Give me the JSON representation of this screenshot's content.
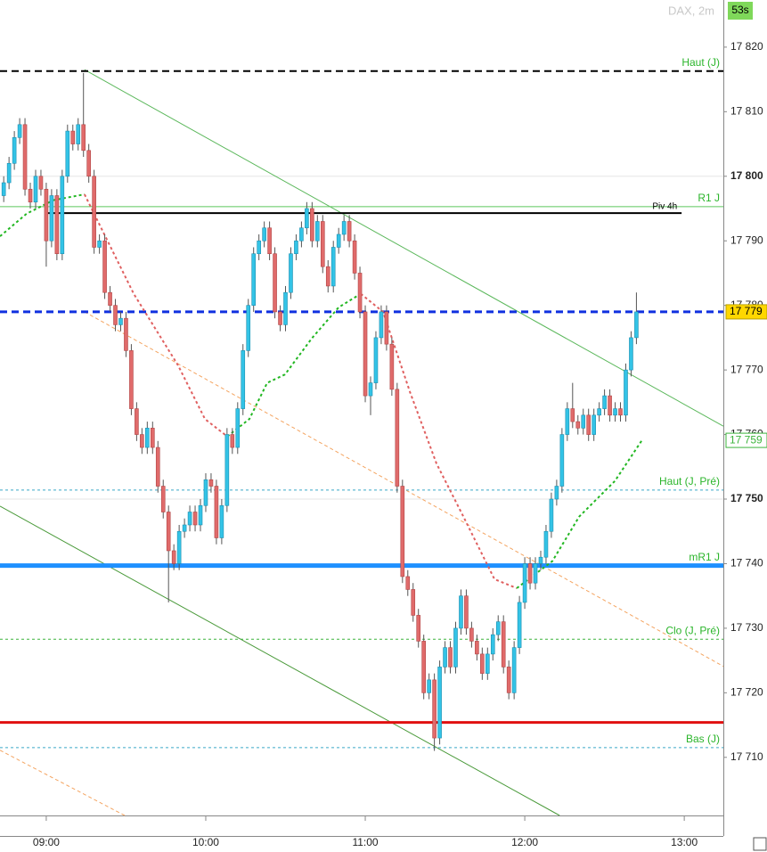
{
  "chart_data": {
    "type": "candlestick",
    "title": "DAX, 2m",
    "timer": "53s",
    "xlim": [
      522.6,
      794.7
    ],
    "ylim": [
      17701,
      17827.3
    ],
    "xticks": [
      {
        "value": 540,
        "label": "09:00"
      },
      {
        "value": 600,
        "label": "10:00"
      },
      {
        "value": 660,
        "label": "11:00"
      },
      {
        "value": 720,
        "label": "12:00"
      },
      {
        "value": 780,
        "label": "13:00"
      }
    ],
    "yticks": [
      {
        "value": 17710,
        "label": "17 710"
      },
      {
        "value": 17720,
        "label": "17 720"
      },
      {
        "value": 17730,
        "label": "17 730"
      },
      {
        "value": 17740,
        "label": "17 740"
      },
      {
        "value": 17750,
        "label": "17 750",
        "bold": true
      },
      {
        "value": 17760,
        "label": "17 760"
      },
      {
        "value": 17770,
        "label": "17 770"
      },
      {
        "value": 17780,
        "label": "17 780"
      },
      {
        "value": 17790,
        "label": "17 790"
      },
      {
        "value": 17800,
        "label": "17 800",
        "bold": true
      },
      {
        "value": 17810,
        "label": "17 810"
      },
      {
        "value": 17820,
        "label": "17 820"
      }
    ],
    "up_color": "#33c3e6",
    "down_color": "#e06b6b",
    "x": [
      524,
      526,
      528,
      530,
      532,
      534,
      536,
      538,
      540,
      542,
      544,
      546,
      548,
      550,
      552,
      554,
      556,
      558,
      560,
      562,
      564,
      566,
      568,
      570,
      572,
      574,
      576,
      578,
      580,
      582,
      584,
      586,
      588,
      590,
      592,
      594,
      596,
      598,
      600,
      602,
      604,
      606,
      608,
      610,
      612,
      614,
      616,
      618,
      620,
      622,
      624,
      626,
      628,
      630,
      632,
      634,
      636,
      638,
      640,
      642,
      644,
      646,
      648,
      650,
      652,
      654,
      656,
      658,
      660,
      662,
      664,
      666,
      668,
      670,
      672,
      674,
      676,
      678,
      680,
      682,
      684,
      686,
      688,
      690,
      692,
      694,
      696,
      698,
      700,
      702,
      704,
      706,
      708,
      710,
      712,
      714,
      716,
      718,
      720,
      722,
      724,
      726,
      728,
      730,
      732,
      734,
      736,
      738,
      740,
      742,
      744,
      746,
      748,
      750,
      752,
      754,
      756,
      758,
      760,
      762
    ],
    "open": [
      17797,
      17799,
      17802,
      17806,
      17808,
      17798,
      17796,
      17800,
      17798,
      17790,
      17797,
      17788,
      17800,
      17807,
      17805,
      17808,
      17804,
      17800,
      17789,
      17790,
      17782,
      17780,
      17777,
      17778,
      17773,
      17764,
      17760,
      17758,
      17761,
      17758,
      17752,
      17748,
      17742,
      17740,
      17745,
      17746,
      17748,
      17746,
      17749,
      17753,
      17752,
      17744,
      17749,
      17760,
      17758,
      17764,
      17773,
      17780,
      17788,
      17790,
      17792,
      17788,
      17779,
      17777,
      17782,
      17788,
      17790,
      17792,
      17795,
      17790,
      17793,
      17786,
      17783,
      17789,
      17791,
      17793,
      17790,
      17785,
      17779,
      17766,
      17768,
      17775,
      17779,
      17774,
      17767,
      17752,
      17738,
      17736,
      17732,
      17728,
      17720,
      17722,
      17713,
      17724,
      17727,
      17724,
      17730,
      17735,
      17730,
      17728,
      17726,
      17723,
      17726,
      17729,
      17731,
      17724,
      17720,
      17727,
      17734,
      17740,
      17737,
      17740,
      17741,
      17745,
      17750,
      17752,
      17760,
      17764,
      17762,
      17761,
      17763,
      17760,
      17763,
      17764,
      17766,
      17763,
      17764,
      17763,
      17770,
      17775
    ],
    "high": [
      17800,
      17803,
      17807,
      17809,
      17809,
      17799,
      17801,
      17801,
      17799,
      17798,
      17798,
      17801,
      17808,
      17808,
      17809,
      17816,
      17805,
      17801,
      17791,
      17791,
      17783,
      17781,
      17779,
      17779,
      17774,
      17765,
      17761,
      17762,
      17762,
      17759,
      17753,
      17749,
      17743,
      17746,
      17747,
      17749,
      17749,
      17750,
      17754,
      17754,
      17753,
      17750,
      17761,
      17761,
      17765,
      17774,
      17781,
      17789,
      17791,
      17793,
      17793,
      17789,
      17780,
      17783,
      17789,
      17791,
      17793,
      17796,
      17796,
      17794,
      17794,
      17787,
      17790,
      17792,
      17794,
      17794,
      17791,
      17786,
      17780,
      17769,
      17776,
      17780,
      17780,
      17775,
      17768,
      17753,
      17739,
      17737,
      17733,
      17729,
      17723,
      17723,
      17725,
      17728,
      17728,
      17731,
      17736,
      17736,
      17731,
      17729,
      17727,
      17727,
      17730,
      17732,
      17732,
      17725,
      17728,
      17735,
      17741,
      17741,
      17741,
      17742,
      17746,
      17751,
      17753,
      17761,
      17765,
      17768,
      17763,
      17764,
      17764,
      17764,
      17765,
      17767,
      17767,
      17765,
      17765,
      17771,
      17776,
      17782
    ],
    "low": [
      17796,
      17798,
      17801,
      17805,
      17797,
      17795,
      17795,
      17797,
      17786,
      17789,
      17787,
      17787,
      17799,
      17804,
      17804,
      17803,
      17799,
      17788,
      17788,
      17781,
      17779,
      17776,
      17776,
      17772,
      17763,
      17759,
      17757,
      17757,
      17757,
      17751,
      17747,
      17734,
      17739,
      17739,
      17744,
      17745,
      17745,
      17745,
      17748,
      17751,
      17743,
      17743,
      17748,
      17757,
      17757,
      17763,
      17772,
      17779,
      17787,
      17789,
      17787,
      17778,
      17776,
      17776,
      17781,
      17787,
      17789,
      17791,
      17789,
      17789,
      17785,
      17782,
      17782,
      17788,
      17790,
      17789,
      17784,
      17778,
      17765,
      17763,
      17767,
      17774,
      17773,
      17766,
      17751,
      17737,
      17735,
      17731,
      17727,
      17719,
      17719,
      17711,
      17712,
      17723,
      17723,
      17723,
      17729,
      17729,
      17727,
      17725,
      17722,
      17722,
      17725,
      17728,
      17723,
      17719,
      17719,
      17726,
      17733,
      17736,
      17736,
      17739,
      17740,
      17744,
      17749,
      17751,
      17759,
      17761,
      17760,
      17760,
      17759,
      17759,
      17762,
      17763,
      17762,
      17762,
      17762,
      17762,
      17769,
      17774
    ],
    "close": [
      17799,
      17802,
      17806,
      17808,
      17798,
      17796,
      17800,
      17798,
      17790,
      17797,
      17788,
      17800,
      17807,
      17805,
      17808,
      17804,
      17800,
      17789,
      17790,
      17782,
      17780,
      17777,
      17778,
      17773,
      17764,
      17760,
      17758,
      17761,
      17758,
      17752,
      17748,
      17742,
      17740,
      17745,
      17746,
      17748,
      17746,
      17749,
      17753,
      17752,
      17744,
      17749,
      17760,
      17758,
      17764,
      17773,
      17780,
      17788,
      17790,
      17792,
      17788,
      17779,
      17777,
      17782,
      17788,
      17790,
      17792,
      17795,
      17790,
      17793,
      17786,
      17783,
      17789,
      17791,
      17793,
      17790,
      17785,
      17779,
      17766,
      17768,
      17775,
      17779,
      17774,
      17767,
      17752,
      17738,
      17736,
      17732,
      17728,
      17720,
      17722,
      17713,
      17724,
      17727,
      17724,
      17730,
      17735,
      17730,
      17728,
      17726,
      17723,
      17726,
      17729,
      17731,
      17724,
      17720,
      17727,
      17734,
      17740,
      17737,
      17740,
      17741,
      17745,
      17750,
      17752,
      17760,
      17764,
      17762,
      17761,
      17763,
      17760,
      17763,
      17764,
      17766,
      17763,
      17764,
      17763,
      17770,
      17775,
      17779
    ],
    "averages": [
      {
        "color": "#22b722",
        "x": [
          522.6,
          532.6,
          542.7,
          554.4
        ],
        "values": [
          17790.7,
          17794.2,
          17796.3,
          17797.2
        ]
      },
      {
        "color": "#e06060",
        "x": [
          554.4,
          572.9,
          589.6,
          599.7,
          608.1
        ],
        "values": [
          17797.2,
          17781.8,
          17770.7,
          17762.4,
          17759.7
        ]
      },
      {
        "color": "#22b722",
        "x": [
          608.1,
          616.4,
          623.1,
          629.8,
          639.9,
          650,
          658.3
        ],
        "values": [
          17759.7,
          17762.4,
          17768,
          17769.3,
          17774.9,
          17779.7,
          17781.8
        ]
      },
      {
        "color": "#e06060",
        "x": [
          658.3,
          666.7,
          676.8,
          686.8,
          696.9,
          708.6,
          717
        ],
        "values": [
          17781.8,
          17779,
          17766.6,
          17755.5,
          17747.3,
          17737.6,
          17736.2
        ]
      },
      {
        "color": "#22b722",
        "x": [
          717,
          730.4,
          740.5,
          753.9,
          763.9
        ],
        "values": [
          17736.2,
          17740.4,
          17747.3,
          17752.8,
          17759
        ]
      }
    ],
    "trendlines": [
      {
        "color": "#5cb85c",
        "dashed": false,
        "x": [
          554.4,
          794.7
        ],
        "values": [
          17816.5,
          17761.3
        ]
      },
      {
        "color": "#4a9a3a",
        "dashed": false,
        "x": [
          522.6,
          733.1
        ],
        "values": [
          17748.9,
          17701
        ]
      },
      {
        "color": "#f4a460",
        "dashed": true,
        "x": [
          554.4,
          794.7
        ],
        "values": [
          17779,
          17724.1
        ]
      },
      {
        "color": "#f4a460",
        "dashed": true,
        "x": [
          522.6,
          569.5
        ],
        "values": [
          17711.1,
          17701
        ]
      }
    ],
    "levels": [
      {
        "label": "Haut (J)",
        "value": 17816.3,
        "color": "#000000",
        "label_color": "#2bb52b",
        "style": "dashed",
        "width": 2
      },
      {
        "label": "R1 J",
        "value": 17795.3,
        "color": "#5cc65c",
        "label_color": "#2bb52b",
        "style": "solid",
        "width": 1
      },
      {
        "label": "Piv 4h",
        "value": 17794.3,
        "color": "#000000",
        "label_color": "#000000",
        "style": "solid",
        "width": 2,
        "xrange": [
          540,
          779
        ]
      },
      {
        "value": 17779,
        "color": "#1030e0",
        "style": "dashed",
        "width": 3
      },
      {
        "label": "Haut (J, Pré)",
        "value": 17751.4,
        "color": "#3aa6c8",
        "label_color": "#2bb52b",
        "style": "dotted",
        "width": 1
      },
      {
        "label": "mR1 J",
        "value": 17739.7,
        "color": "#1e90ff",
        "label_color": "#2bb52b",
        "style": "solid",
        "width": 5
      },
      {
        "label": "Clo (J, Pré)",
        "value": 17728.3,
        "color": "#3cb43c",
        "label_color": "#2bb52b",
        "style": "dotted",
        "width": 1
      },
      {
        "value": 17715.4,
        "color": "#e01010",
        "style": "solid",
        "width": 3
      },
      {
        "label": "Bas (J)",
        "value": 17711.5,
        "color": "#3aa6c8",
        "label_color": "#2bb52b",
        "style": "dotted",
        "width": 1
      }
    ],
    "price_tags": [
      {
        "value": 17779,
        "label": "17 779",
        "fill": "#ffd700",
        "border": "#b8a000",
        "text_color": "#000000"
      },
      {
        "value": 17759.1,
        "label": "17 759",
        "fill": "#ffffff",
        "border": "#3cb43c",
        "text_color": "#3cb43c"
      }
    ]
  }
}
